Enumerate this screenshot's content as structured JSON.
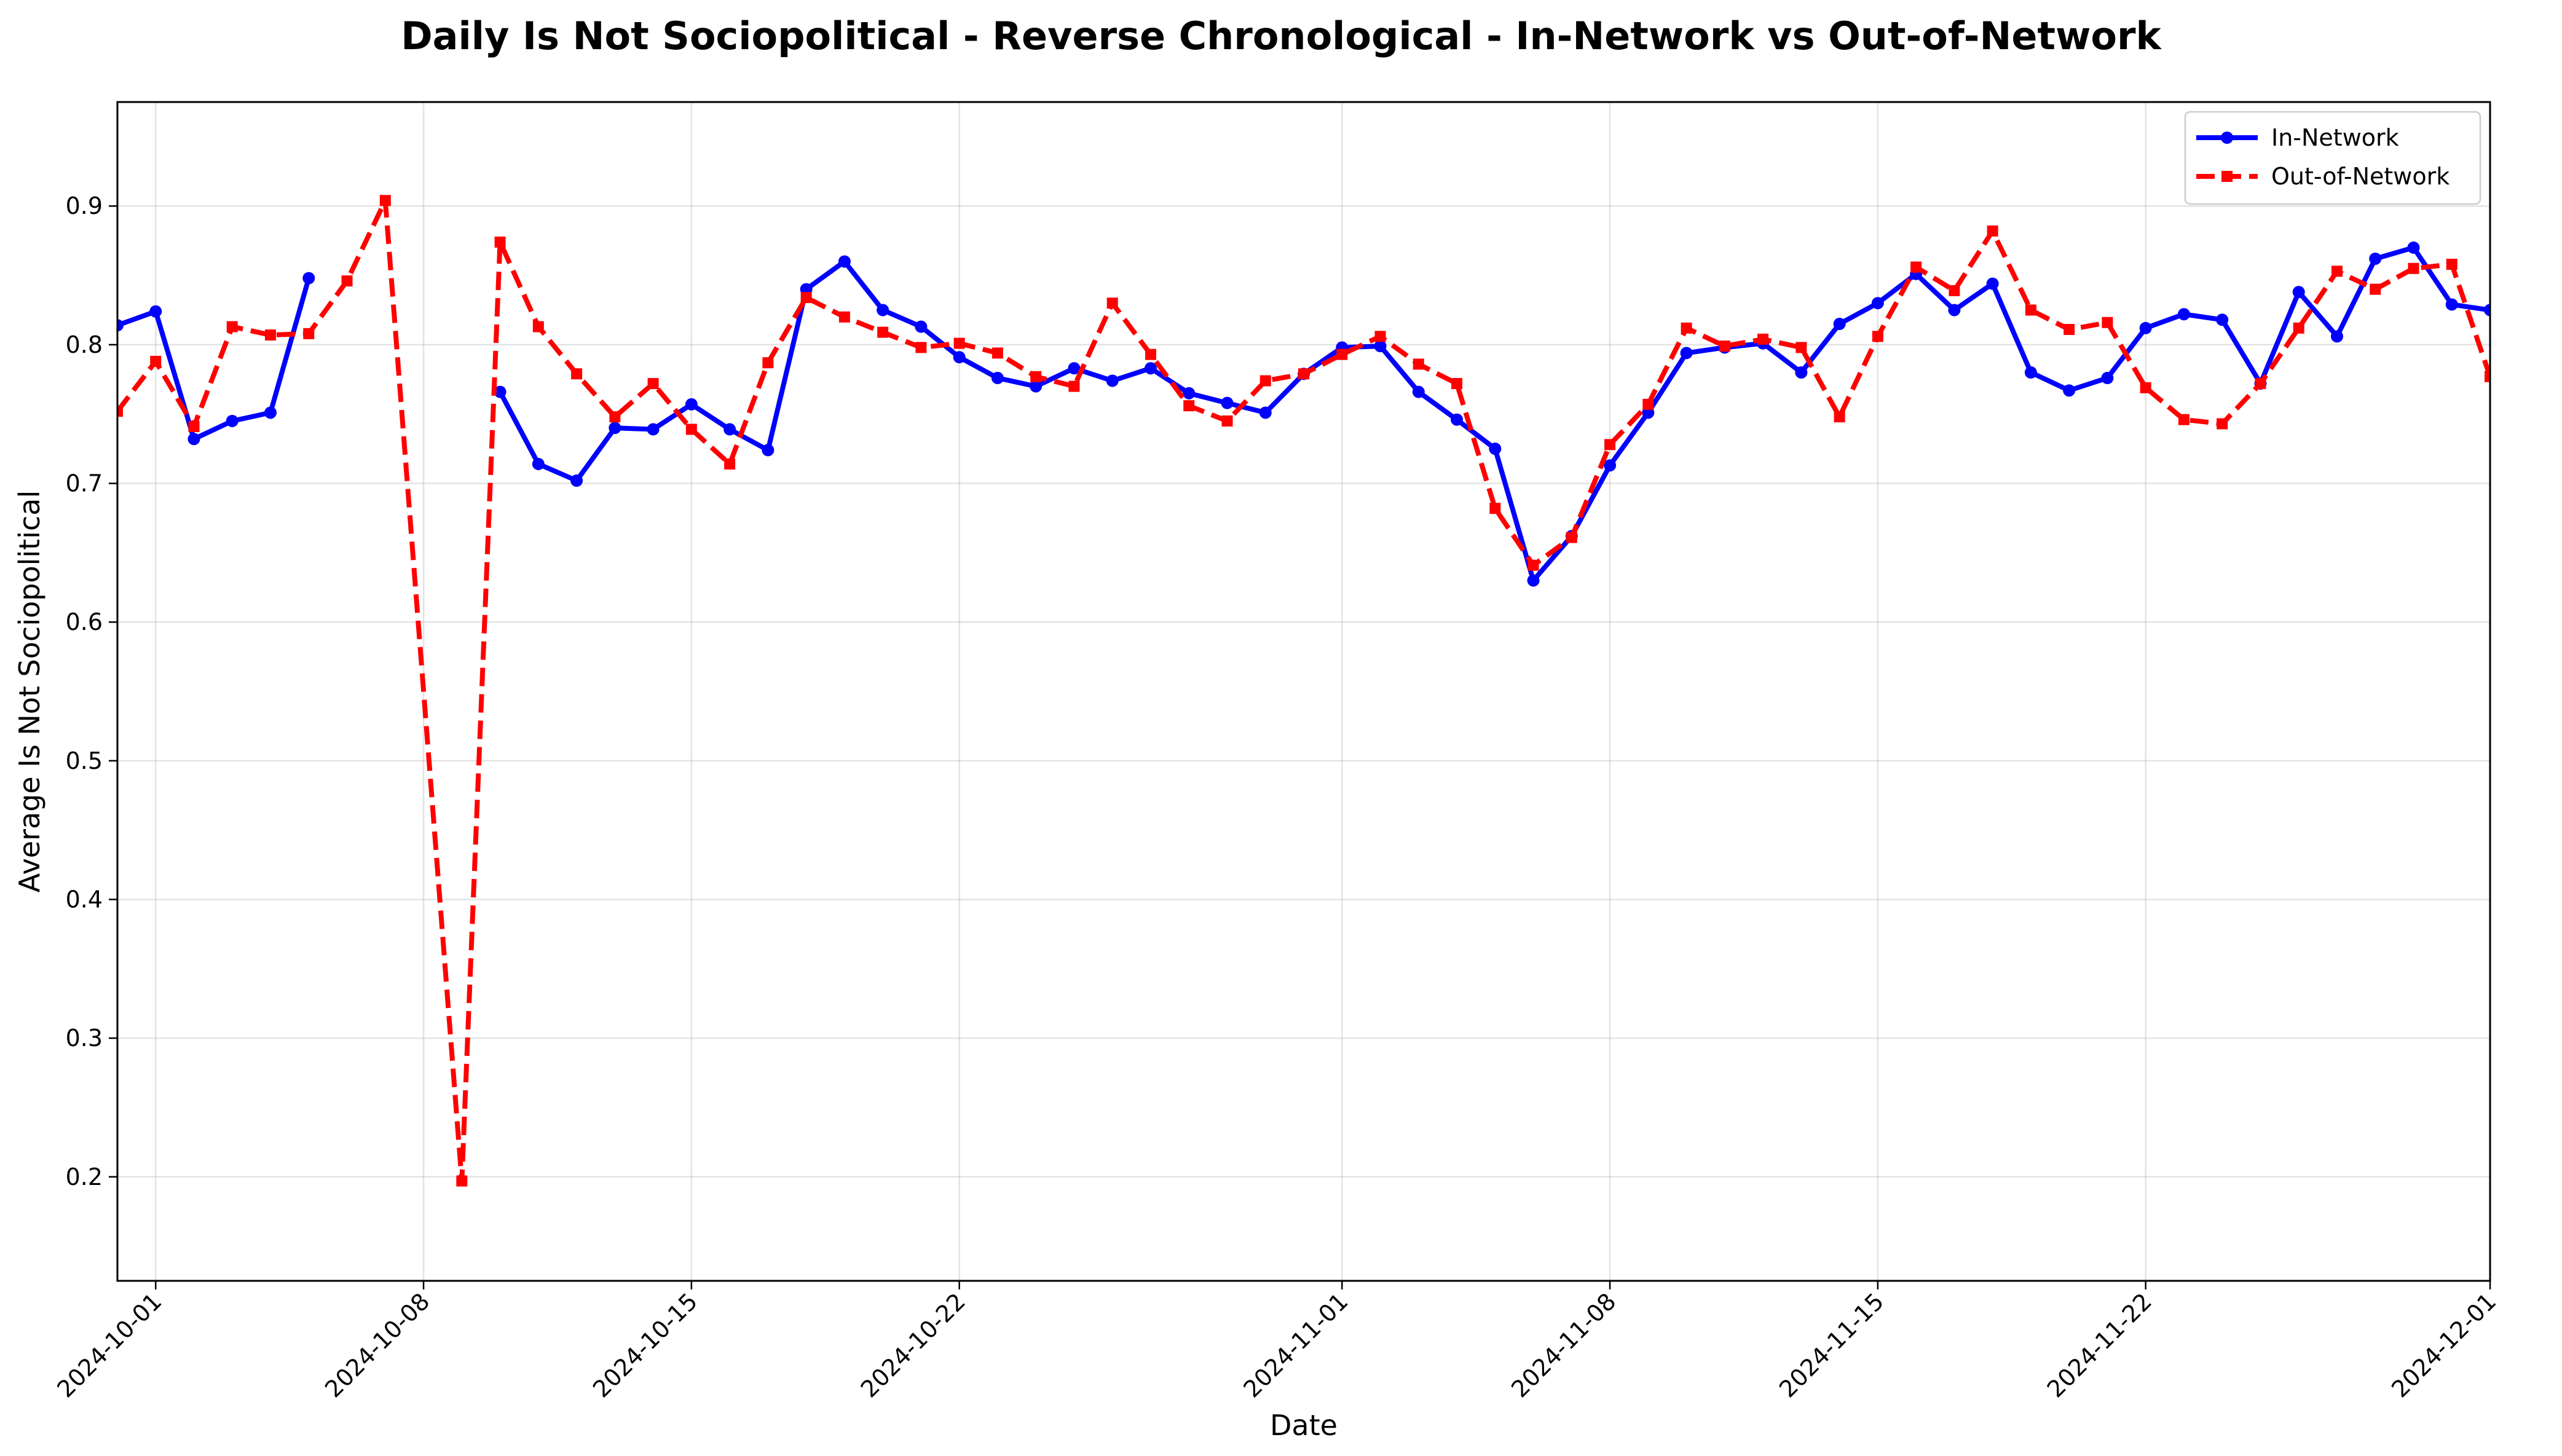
{
  "chart_data": {
    "type": "line",
    "title": "Daily Is Not Sociopolitical - Reverse Chronological - In-Network vs Out-of-Network",
    "xlabel": "Date",
    "ylabel": "Average Is Not Sociopolitical",
    "xlim": [
      "2024-09-30",
      "2024-12-01"
    ],
    "ylim": [
      0.125,
      0.975
    ],
    "x_ticks": [
      "2024-10-01",
      "2024-10-08",
      "2024-10-15",
      "2024-10-22",
      "2024-11-01",
      "2024-11-08",
      "2024-11-15",
      "2024-11-22",
      "2024-12-01"
    ],
    "y_ticks": [
      "0.2",
      "0.3",
      "0.4",
      "0.5",
      "0.6",
      "0.7",
      "0.8",
      "0.9"
    ],
    "grid": true,
    "legend_position": "top-right",
    "series": [
      {
        "name": "In-Network",
        "color": "#0000ff",
        "line_style": "solid",
        "marker": "circle",
        "points": [
          [
            "2024-09-30",
            0.814
          ],
          [
            "2024-10-01",
            0.824
          ],
          [
            "2024-10-02",
            0.732
          ],
          [
            "2024-10-03",
            0.745
          ],
          [
            "2024-10-04",
            0.751
          ],
          [
            "2024-10-05",
            0.848
          ],
          [
            "2024-10-10",
            0.766
          ],
          [
            "2024-10-11",
            0.714
          ],
          [
            "2024-10-12",
            0.702
          ],
          [
            "2024-10-13",
            0.74
          ],
          [
            "2024-10-14",
            0.739
          ],
          [
            "2024-10-15",
            0.757
          ],
          [
            "2024-10-16",
            0.739
          ],
          [
            "2024-10-17",
            0.724
          ],
          [
            "2024-10-18",
            0.84
          ],
          [
            "2024-10-19",
            0.86
          ],
          [
            "2024-10-20",
            0.825
          ],
          [
            "2024-10-21",
            0.813
          ],
          [
            "2024-10-22",
            0.791
          ],
          [
            "2024-10-23",
            0.776
          ],
          [
            "2024-10-24",
            0.77
          ],
          [
            "2024-10-25",
            0.783
          ],
          [
            "2024-10-26",
            0.774
          ],
          [
            "2024-10-27",
            0.783
          ],
          [
            "2024-10-28",
            0.765
          ],
          [
            "2024-10-29",
            0.758
          ],
          [
            "2024-10-30",
            0.751
          ],
          [
            "2024-10-31",
            0.779
          ],
          [
            "2024-11-01",
            0.798
          ],
          [
            "2024-11-02",
            0.799
          ],
          [
            "2024-11-03",
            0.766
          ],
          [
            "2024-11-04",
            0.746
          ],
          [
            "2024-11-05",
            0.725
          ],
          [
            "2024-11-06",
            0.63
          ],
          [
            "2024-11-07",
            0.662
          ],
          [
            "2024-11-08",
            0.713
          ],
          [
            "2024-11-09",
            0.751
          ],
          [
            "2024-11-10",
            0.794
          ],
          [
            "2024-11-11",
            0.798
          ],
          [
            "2024-11-12",
            0.801
          ],
          [
            "2024-11-13",
            0.78
          ],
          [
            "2024-11-14",
            0.815
          ],
          [
            "2024-11-15",
            0.83
          ],
          [
            "2024-11-16",
            0.851
          ],
          [
            "2024-11-17",
            0.825
          ],
          [
            "2024-11-18",
            0.844
          ],
          [
            "2024-11-19",
            0.78
          ],
          [
            "2024-11-20",
            0.767
          ],
          [
            "2024-11-21",
            0.776
          ],
          [
            "2024-11-22",
            0.812
          ],
          [
            "2024-11-23",
            0.822
          ],
          [
            "2024-11-24",
            0.818
          ],
          [
            "2024-11-25",
            0.772
          ],
          [
            "2024-11-26",
            0.838
          ],
          [
            "2024-11-27",
            0.806
          ],
          [
            "2024-11-28",
            0.862
          ],
          [
            "2024-11-29",
            0.87
          ],
          [
            "2024-11-30",
            0.829
          ],
          [
            "2024-12-01",
            0.825
          ]
        ]
      },
      {
        "name": "Out-of-Network",
        "color": "#ff0000",
        "line_style": "dashed",
        "marker": "square",
        "points": [
          [
            "2024-09-30",
            0.752
          ],
          [
            "2024-10-01",
            0.788
          ],
          [
            "2024-10-02",
            0.741
          ],
          [
            "2024-10-03",
            0.813
          ],
          [
            "2024-10-04",
            0.807
          ],
          [
            "2024-10-05",
            0.808
          ],
          [
            "2024-10-06",
            0.846
          ],
          [
            "2024-10-07",
            0.904
          ],
          [
            "2024-10-09",
            0.197
          ],
          [
            "2024-10-10",
            0.874
          ],
          [
            "2024-10-11",
            0.813
          ],
          [
            "2024-10-12",
            0.779
          ],
          [
            "2024-10-13",
            0.748
          ],
          [
            "2024-10-14",
            0.772
          ],
          [
            "2024-10-15",
            0.739
          ],
          [
            "2024-10-16",
            0.714
          ],
          [
            "2024-10-17",
            0.787
          ],
          [
            "2024-10-18",
            0.834
          ],
          [
            "2024-10-19",
            0.82
          ],
          [
            "2024-10-20",
            0.809
          ],
          [
            "2024-10-21",
            0.798
          ],
          [
            "2024-10-22",
            0.801
          ],
          [
            "2024-10-23",
            0.794
          ],
          [
            "2024-10-24",
            0.777
          ],
          [
            "2024-10-25",
            0.77
          ],
          [
            "2024-10-26",
            0.83
          ],
          [
            "2024-10-27",
            0.793
          ],
          [
            "2024-10-28",
            0.756
          ],
          [
            "2024-10-29",
            0.745
          ],
          [
            "2024-10-30",
            0.774
          ],
          [
            "2024-10-31",
            0.779
          ],
          [
            "2024-11-01",
            0.793
          ],
          [
            "2024-11-02",
            0.806
          ],
          [
            "2024-11-03",
            0.786
          ],
          [
            "2024-11-04",
            0.772
          ],
          [
            "2024-11-05",
            0.682
          ],
          [
            "2024-11-06",
            0.641
          ],
          [
            "2024-11-07",
            0.661
          ],
          [
            "2024-11-08",
            0.728
          ],
          [
            "2024-11-09",
            0.757
          ],
          [
            "2024-11-10",
            0.812
          ],
          [
            "2024-11-11",
            0.799
          ],
          [
            "2024-11-12",
            0.804
          ],
          [
            "2024-11-13",
            0.798
          ],
          [
            "2024-11-14",
            0.748
          ],
          [
            "2024-11-15",
            0.806
          ],
          [
            "2024-11-16",
            0.856
          ],
          [
            "2024-11-17",
            0.839
          ],
          [
            "2024-11-18",
            0.882
          ],
          [
            "2024-11-19",
            0.825
          ],
          [
            "2024-11-20",
            0.811
          ],
          [
            "2024-11-21",
            0.816
          ],
          [
            "2024-11-22",
            0.769
          ],
          [
            "2024-11-23",
            0.746
          ],
          [
            "2024-11-24",
            0.743
          ],
          [
            "2024-11-25",
            0.772
          ],
          [
            "2024-11-26",
            0.812
          ],
          [
            "2024-11-27",
            0.853
          ],
          [
            "2024-11-28",
            0.84
          ],
          [
            "2024-11-29",
            0.855
          ],
          [
            "2024-11-30",
            0.858
          ],
          [
            "2024-12-01",
            0.777
          ]
        ]
      }
    ]
  }
}
